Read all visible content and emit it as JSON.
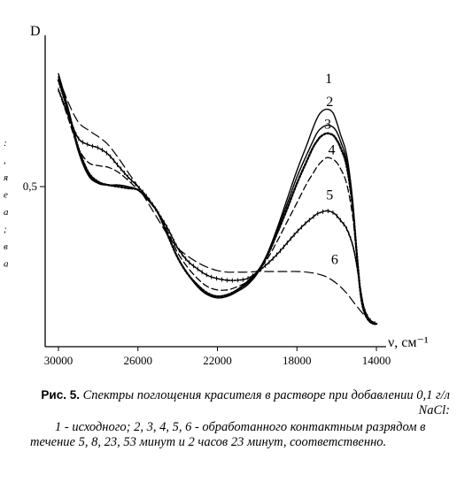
{
  "chart_data": {
    "type": "line",
    "ylabel": "D",
    "xlabel": "ν, см⁻¹",
    "x_reversed": true,
    "xlim": [
      30500,
      13500
    ],
    "ylim": [
      0.05,
      0.95
    ],
    "x_ticks": [
      30000,
      26000,
      22000,
      18000,
      14000
    ],
    "x_tick_labels": [
      "30000",
      "26000",
      "22000",
      "18000",
      "14000"
    ],
    "y_ticks": [
      0.5
    ],
    "y_tick_labels": [
      "0,5"
    ],
    "grid": false,
    "series": [
      {
        "name": "1",
        "label": "1",
        "style": "solid",
        "label_pos": [
          16400,
          0.82
        ],
        "x": [
          30000,
          29500,
          29000,
          28500,
          28000,
          27500,
          27000,
          26500,
          26000,
          25500,
          25000,
          24500,
          24000,
          23500,
          23000,
          22500,
          22000,
          21500,
          21000,
          20500,
          20000,
          19500,
          19000,
          18500,
          18000,
          17500,
          17200,
          17000,
          16800,
          16500,
          16200,
          16000,
          15800,
          15500,
          15200,
          15000,
          14800,
          14600,
          14300,
          14000
        ],
        "y": [
          0.85,
          0.74,
          0.62,
          0.54,
          0.51,
          0.505,
          0.505,
          0.5,
          0.49,
          0.46,
          0.42,
          0.35,
          0.28,
          0.23,
          0.19,
          0.165,
          0.155,
          0.16,
          0.175,
          0.195,
          0.23,
          0.29,
          0.37,
          0.46,
          0.55,
          0.63,
          0.68,
          0.71,
          0.73,
          0.74,
          0.73,
          0.7,
          0.66,
          0.6,
          0.46,
          0.3,
          0.17,
          0.11,
          0.08,
          0.075
        ]
      },
      {
        "name": "2",
        "label": "2",
        "style": "solid",
        "label_pos": [
          16350,
          0.75
        ],
        "x": [
          30000,
          29500,
          29000,
          28500,
          28000,
          27500,
          27000,
          26500,
          26000,
          25500,
          25000,
          24500,
          24000,
          23500,
          23000,
          22500,
          22000,
          21500,
          21000,
          20500,
          20000,
          19500,
          19000,
          18500,
          18000,
          17500,
          17200,
          17000,
          16800,
          16500,
          16200,
          16000,
          15800,
          15500,
          15200,
          15000,
          14800,
          14600,
          14300,
          14000
        ],
        "y": [
          0.84,
          0.73,
          0.61,
          0.535,
          0.51,
          0.505,
          0.505,
          0.5,
          0.49,
          0.46,
          0.42,
          0.35,
          0.28,
          0.23,
          0.19,
          0.165,
          0.16,
          0.165,
          0.18,
          0.2,
          0.235,
          0.29,
          0.365,
          0.445,
          0.53,
          0.6,
          0.64,
          0.665,
          0.68,
          0.69,
          0.685,
          0.67,
          0.64,
          0.58,
          0.45,
          0.3,
          0.17,
          0.11,
          0.08,
          0.075
        ]
      },
      {
        "name": "3",
        "label": "3",
        "style": "dotted",
        "label_pos": [
          16450,
          0.68
        ],
        "x": [
          30000,
          29500,
          29000,
          28500,
          28000,
          27500,
          27000,
          26500,
          26000,
          25500,
          25000,
          24500,
          24000,
          23500,
          23000,
          22500,
          22000,
          21500,
          21000,
          20500,
          20000,
          19500,
          19000,
          18500,
          18000,
          17500,
          17200,
          17000,
          16800,
          16500,
          16200,
          16000,
          15800,
          15500,
          15200,
          15000,
          14800,
          14600,
          14300,
          14000
        ],
        "y": [
          0.83,
          0.73,
          0.62,
          0.545,
          0.515,
          0.505,
          0.5,
          0.495,
          0.49,
          0.46,
          0.42,
          0.35,
          0.28,
          0.23,
          0.195,
          0.17,
          0.16,
          0.165,
          0.18,
          0.205,
          0.235,
          0.285,
          0.355,
          0.43,
          0.51,
          0.58,
          0.62,
          0.64,
          0.655,
          0.665,
          0.66,
          0.645,
          0.62,
          0.565,
          0.44,
          0.3,
          0.17,
          0.11,
          0.08,
          0.075
        ]
      },
      {
        "name": "4",
        "label": "4",
        "style": "dashed",
        "label_pos": [
          16250,
          0.6
        ],
        "x": [
          30000,
          29500,
          29000,
          28500,
          28000,
          27500,
          27000,
          26500,
          26000,
          25500,
          25000,
          24500,
          24000,
          23500,
          23000,
          22500,
          22000,
          21500,
          21000,
          20500,
          20000,
          19500,
          19000,
          18500,
          18000,
          17500,
          17200,
          17000,
          16800,
          16500,
          16200,
          16000,
          15800,
          15500,
          15200,
          15000,
          14800,
          14600,
          14300,
          14000
        ],
        "y": [
          0.8,
          0.71,
          0.62,
          0.575,
          0.565,
          0.56,
          0.545,
          0.52,
          0.49,
          0.46,
          0.42,
          0.36,
          0.295,
          0.25,
          0.215,
          0.19,
          0.18,
          0.18,
          0.19,
          0.205,
          0.235,
          0.275,
          0.33,
          0.39,
          0.45,
          0.51,
          0.54,
          0.56,
          0.575,
          0.59,
          0.585,
          0.575,
          0.555,
          0.51,
          0.41,
          0.29,
          0.17,
          0.11,
          0.08,
          0.075
        ]
      },
      {
        "name": "5",
        "label": "5",
        "style": "crossed",
        "label_pos": [
          16350,
          0.46
        ],
        "x": [
          30000,
          29500,
          29000,
          28500,
          28000,
          27500,
          27000,
          26500,
          26000,
          25500,
          25000,
          24500,
          24000,
          23500,
          23000,
          22500,
          22000,
          21500,
          21000,
          20500,
          20000,
          19500,
          19000,
          18500,
          18000,
          17500,
          17200,
          17000,
          16800,
          16500,
          16200,
          16000,
          15800,
          15500,
          15200,
          15000,
          14800,
          14600,
          14300,
          14000
        ],
        "y": [
          0.8,
          0.72,
          0.65,
          0.63,
          0.62,
          0.6,
          0.565,
          0.53,
          0.5,
          0.465,
          0.42,
          0.37,
          0.31,
          0.27,
          0.245,
          0.225,
          0.215,
          0.21,
          0.21,
          0.215,
          0.235,
          0.26,
          0.29,
          0.325,
          0.36,
          0.39,
          0.405,
          0.415,
          0.42,
          0.425,
          0.42,
          0.41,
          0.395,
          0.37,
          0.32,
          0.26,
          0.18,
          0.12,
          0.085,
          0.075
        ]
      },
      {
        "name": "6",
        "label": "6",
        "style": "long-dash",
        "label_pos": [
          16100,
          0.26
        ],
        "x": [
          30000,
          29500,
          29000,
          28500,
          28000,
          27500,
          27000,
          26500,
          26000,
          25500,
          25000,
          24500,
          24000,
          23500,
          23000,
          22500,
          22000,
          21500,
          21000,
          20500,
          20000,
          19500,
          19000,
          18500,
          18000,
          17500,
          17000,
          16500,
          16000,
          15500,
          15000,
          14500,
          14000
        ],
        "y": [
          0.84,
          0.76,
          0.7,
          0.675,
          0.655,
          0.63,
          0.59,
          0.545,
          0.5,
          0.45,
          0.4,
          0.35,
          0.31,
          0.285,
          0.265,
          0.25,
          0.24,
          0.235,
          0.235,
          0.235,
          0.237,
          0.237,
          0.237,
          0.237,
          0.237,
          0.235,
          0.23,
          0.22,
          0.2,
          0.17,
          0.13,
          0.095,
          0.075
        ]
      }
    ]
  },
  "margin_fragments": [
    ":",
    ",",
    "я",
    "е",
    "а",
    ";",
    "в",
    "а"
  ],
  "caption": {
    "fig_label": "Рис. 5.",
    "title": "Спектры поглощения красителя в растворе при добавлении 0,1 г/л NaCl:",
    "legend": "1 - исходного; 2, 3, 4, 5, 6 - обработанного контактным разрядом в течение 5, 8, 23, 53 минут и 2 часов 23 минут, соответственно."
  }
}
